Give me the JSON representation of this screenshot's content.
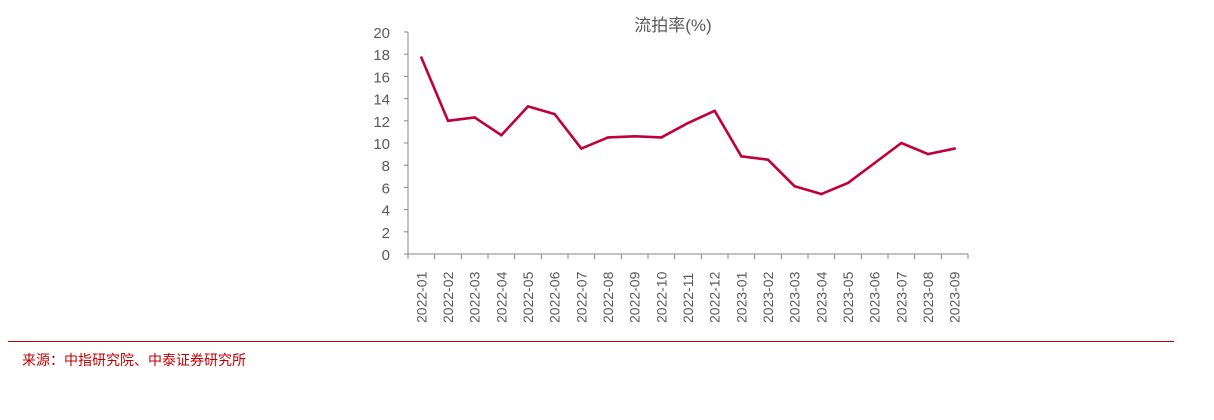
{
  "chart_data": {
    "type": "line",
    "title": "流拍率(%)",
    "categories": [
      "2022-01",
      "2022-02",
      "2022-03",
      "2022-04",
      "2022-05",
      "2022-06",
      "2022-07",
      "2022-08",
      "2022-09",
      "2022-10",
      "2022-11",
      "2022-12",
      "2023-01",
      "2023-02",
      "2023-03",
      "2023-04",
      "2023-05",
      "2023-06",
      "2023-07",
      "2023-08",
      "2023-09"
    ],
    "series": [
      {
        "values": [
          17.7,
          12.0,
          12.3,
          10.7,
          13.3,
          12.6,
          9.5,
          10.5,
          10.6,
          10.5,
          11.8,
          12.9,
          8.8,
          8.5,
          6.1,
          5.4,
          6.4,
          8.2,
          10.0,
          9.0,
          9.5
        ],
        "color": "#c0003c"
      }
    ],
    "yticks": [
      "0",
      "2",
      "4",
      "6",
      "8",
      "10",
      "12",
      "14",
      "16",
      "18",
      "20"
    ],
    "ylim": [
      0,
      20
    ],
    "grid": false,
    "legend": "none"
  },
  "source": "来源：中指研究院、中泰证券研究所"
}
